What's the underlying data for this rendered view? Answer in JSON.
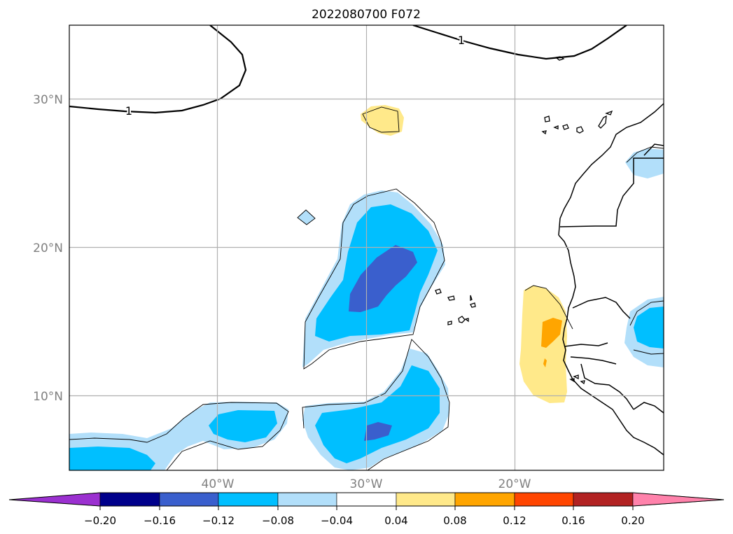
{
  "map": {
    "title": "2022080700 F072",
    "lat_labels": [
      "30°N",
      "20°N",
      "10°N"
    ],
    "lon_labels": [
      "40°W",
      "30°W",
      "20°W"
    ],
    "contour_labels": [
      "1",
      "1"
    ]
  },
  "colorbar": {
    "labels": [
      "−0.20",
      "−0.16",
      "−0.12",
      "−0.08",
      "−0.04",
      "0.04",
      "0.08",
      "0.12",
      "0.16",
      "0.20"
    ],
    "colors": [
      "#9b30d0",
      "#00008b",
      "#3a5fcd",
      "#00bfff",
      "#b2dffa",
      "#ffffff",
      "#ffe98a",
      "#ffa500",
      "#ff4500",
      "#b22222",
      "#ff82ab"
    ]
  }
}
